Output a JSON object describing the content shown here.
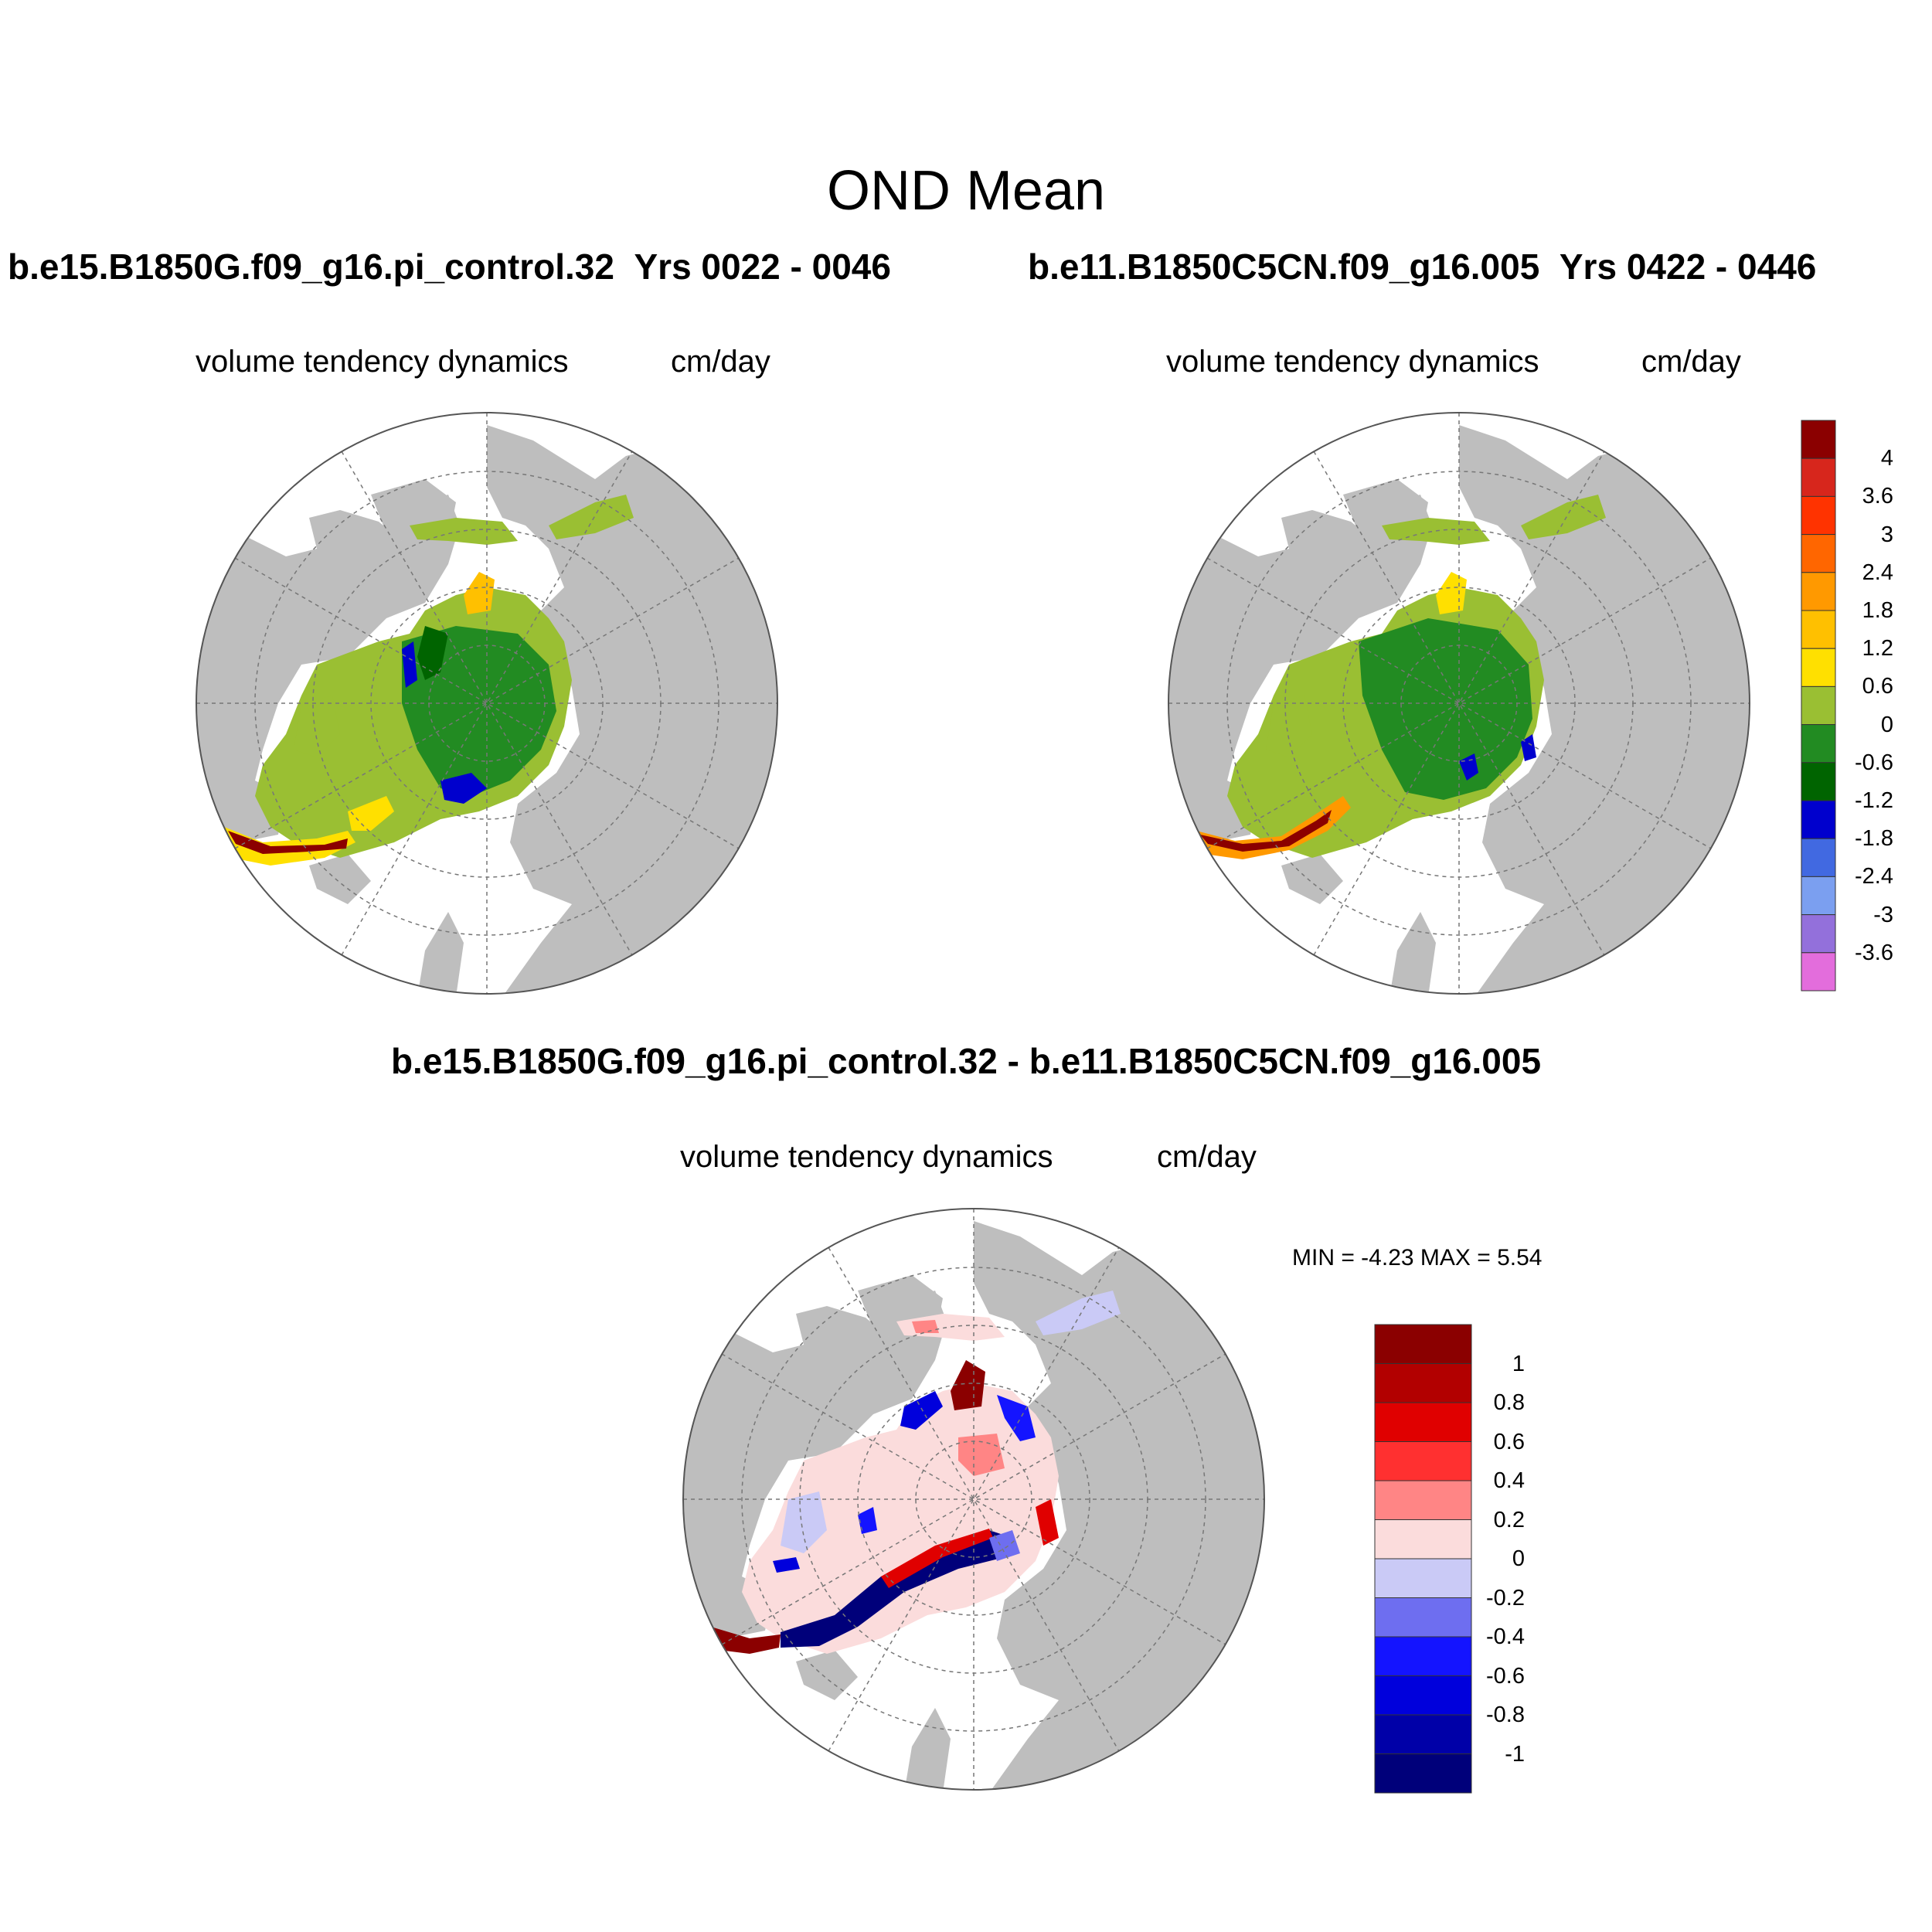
{
  "title": "OND Mean",
  "panels": [
    {
      "case": "b.e15.B1850G.f09_g16.pi_control.32",
      "years": "Yrs 0022 - 0046",
      "variable": "volume tendency dynamics",
      "units": "cm/day"
    },
    {
      "case": "b.e11.B1850C5CN.f09_g16.005",
      "years": "Yrs 0422 - 0446",
      "variable": "volume tendency dynamics",
      "units": "cm/day"
    },
    {
      "case": "b.e15.B1850G.f09_g16.pi_control.32 - b.e11.B1850C5CN.f09_g16.005",
      "variable": "volume tendency dynamics",
      "units": "cm/day",
      "min_max": "MIN =  -4.23 MAX =   5.54"
    }
  ],
  "colorbar_main": {
    "labels": [
      "4",
      "3.6",
      "3",
      "2.4",
      "1.8",
      "1.2",
      "0.6",
      "0",
      "-0.6",
      "-1.2",
      "-1.8",
      "-2.4",
      "-3",
      "-3.6"
    ],
    "colors": [
      "#8b0000",
      "#d7261c",
      "#ff3300",
      "#ff6600",
      "#ff9900",
      "#ffc000",
      "#ffe000",
      "#9abf33",
      "#228b22",
      "#006400",
      "#0000cd",
      "#4169e1",
      "#7b9ff0",
      "#9370db",
      "#e36ddc"
    ]
  },
  "colorbar_diff": {
    "labels": [
      "1",
      "0.8",
      "0.6",
      "0.4",
      "0.2",
      "0",
      "-0.2",
      "-0.4",
      "-0.6",
      "-0.8",
      "-1"
    ],
    "colors": [
      "#8b0000",
      "#b20000",
      "#e00000",
      "#ff3030",
      "#ff8585",
      "#fbdcdc",
      "#cacaf6",
      "#6e6ef0",
      "#1414ff",
      "#0000dc",
      "#0000a8",
      "#00007a"
    ]
  },
  "colors": {
    "land": "#bebebe",
    "ocean": "#ffffff",
    "ice_green": "#228b22",
    "ice_light_green": "#9abf33",
    "grid": "#777777"
  }
}
